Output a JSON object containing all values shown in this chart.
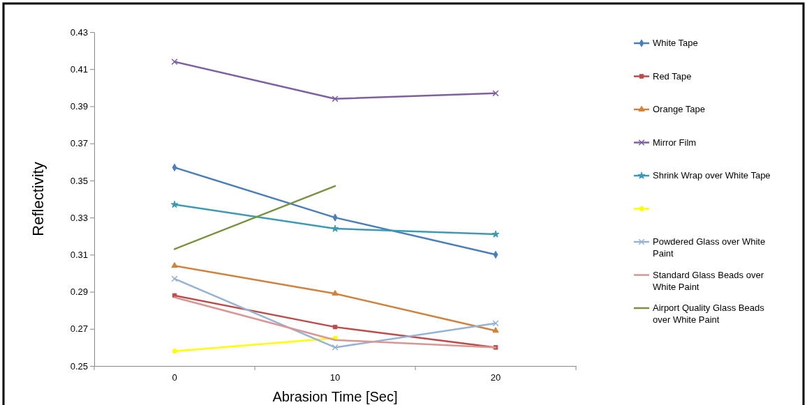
{
  "chart_data": {
    "type": "line",
    "xlabel": "Abrasion Time [Sec]",
    "ylabel": "Reflectivity",
    "categories": [
      "0",
      "10",
      "20"
    ],
    "ylim": [
      0.25,
      0.43
    ],
    "yticks": [
      0.25,
      0.27,
      0.29,
      0.31,
      0.33,
      0.35,
      0.37,
      0.39,
      0.41,
      0.43
    ],
    "grid": false,
    "legend": "right",
    "series": [
      {
        "name": "White Tape",
        "color": "#4a7ebb",
        "marker": "diamond",
        "values": [
          0.357,
          0.33,
          0.31
        ]
      },
      {
        "name": "Red Tape",
        "color": "#be4b48",
        "marker": "square",
        "values": [
          0.288,
          0.271,
          0.26
        ]
      },
      {
        "name": "Orange Tape",
        "color": "#d0823c",
        "marker": "triangle",
        "values": [
          0.304,
          0.289,
          0.269
        ]
      },
      {
        "name": "Mirror Film",
        "color": "#7d60a0",
        "marker": "cross",
        "values": [
          0.414,
          0.394,
          0.397
        ]
      },
      {
        "name": "Shrink Wrap over White Tape",
        "color": "#3c9ab4",
        "marker": "star",
        "values": [
          0.337,
          0.324,
          0.321
        ]
      },
      {
        "color": "#ffff00",
        "marker": "circle",
        "values": [
          0.258,
          0.265,
          null
        ]
      },
      {
        "name": "Powdered Glass over White Paint",
        "color": "#95b3d7",
        "marker": "cross",
        "values": [
          0.297,
          0.26,
          0.273
        ]
      },
      {
        "name": "Standard Glass Beads over White Paint",
        "color": "#d99694",
        "marker": "none",
        "values": [
          0.287,
          0.264,
          0.26
        ]
      },
      {
        "name": "Airport Quality Glass Beads over White Paint",
        "color": "#76923c",
        "marker": "none",
        "values": [
          0.313,
          0.347,
          null
        ]
      }
    ]
  }
}
